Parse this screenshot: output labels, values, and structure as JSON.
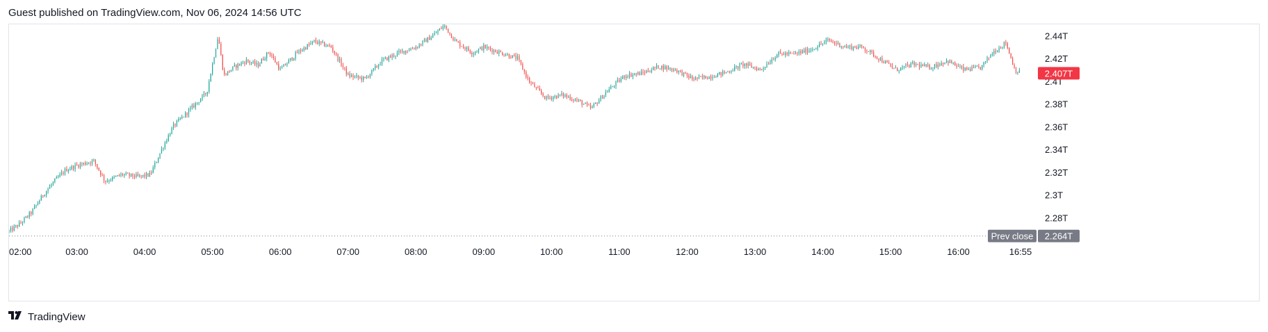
{
  "header": {
    "text": "Guest published on TradingView.com, Nov 06, 2024 14:56 UTC"
  },
  "footer": {
    "brand": "TradingView",
    "logo_icon": "tradingview-logo-icon"
  },
  "colors": {
    "up": "#26a69a",
    "down": "#ef5350",
    "last_price_bg": "#f23645",
    "prev_close_bg": "#787b86",
    "axis_text": "#131722",
    "border": "#e0e3eb",
    "prev_close_line": "#787b86"
  },
  "chart_data": {
    "type": "candlestick",
    "x_ticks": [
      "02:00",
      "03:00",
      "04:00",
      "05:00",
      "06:00",
      "07:00",
      "08:00",
      "09:00",
      "10:00",
      "11:00",
      "12:00",
      "13:00",
      "14:00",
      "15:00",
      "16:00",
      "16:55"
    ],
    "y_ticks": [
      "2.44T",
      "2.42T",
      "2.4T",
      "2.38T",
      "2.36T",
      "2.34T",
      "2.32T",
      "2.3T",
      "2.28T"
    ],
    "y_tick_values": [
      2.44,
      2.42,
      2.4,
      2.38,
      2.36,
      2.34,
      2.32,
      2.3,
      2.28
    ],
    "ylim": [
      2.262,
      2.45
    ],
    "y_unit": "T",
    "last_price": {
      "value": 2.407,
      "label": "2.407T"
    },
    "prev_close": {
      "value": 2.264,
      "label": "2.264T",
      "text": "Prev close"
    },
    "grid": false,
    "series_path": [
      [
        "02:00",
        2.268
      ],
      [
        "02:10",
        2.275
      ],
      [
        "02:20",
        2.285
      ],
      [
        "02:30",
        2.3
      ],
      [
        "02:40",
        2.312
      ],
      [
        "02:50",
        2.322
      ],
      [
        "03:00",
        2.326
      ],
      [
        "03:15",
        2.33
      ],
      [
        "03:25",
        2.312
      ],
      [
        "03:40",
        2.318
      ],
      [
        "03:55",
        2.316
      ],
      [
        "04:05",
        2.318
      ],
      [
        "04:15",
        2.34
      ],
      [
        "04:25",
        2.36
      ],
      [
        "04:35",
        2.37
      ],
      [
        "04:45",
        2.38
      ],
      [
        "04:55",
        2.39
      ],
      [
        "05:05",
        2.44
      ],
      [
        "05:10",
        2.405
      ],
      [
        "05:20",
        2.413
      ],
      [
        "05:30",
        2.418
      ],
      [
        "05:40",
        2.414
      ],
      [
        "05:50",
        2.426
      ],
      [
        "06:00",
        2.41
      ],
      [
        "06:15",
        2.425
      ],
      [
        "06:30",
        2.435
      ],
      [
        "06:45",
        2.43
      ],
      [
        "07:00",
        2.405
      ],
      [
        "07:15",
        2.402
      ],
      [
        "07:30",
        2.418
      ],
      [
        "07:45",
        2.425
      ],
      [
        "08:00",
        2.43
      ],
      [
        "08:15",
        2.44
      ],
      [
        "08:25",
        2.449
      ],
      [
        "08:35",
        2.435
      ],
      [
        "08:50",
        2.425
      ],
      [
        "09:00",
        2.43
      ],
      [
        "09:15",
        2.425
      ],
      [
        "09:30",
        2.42
      ],
      [
        "09:40",
        2.4
      ],
      [
        "09:55",
        2.385
      ],
      [
        "10:10",
        2.388
      ],
      [
        "10:25",
        2.382
      ],
      [
        "10:35",
        2.376
      ],
      [
        "10:50",
        2.392
      ],
      [
        "11:05",
        2.405
      ],
      [
        "11:20",
        2.407
      ],
      [
        "11:35",
        2.413
      ],
      [
        "11:50",
        2.41
      ],
      [
        "12:05",
        2.402
      ],
      [
        "12:20",
        2.404
      ],
      [
        "12:35",
        2.408
      ],
      [
        "12:50",
        2.415
      ],
      [
        "13:05",
        2.41
      ],
      [
        "13:20",
        2.424
      ],
      [
        "13:35",
        2.424
      ],
      [
        "13:50",
        2.428
      ],
      [
        "14:05",
        2.436
      ],
      [
        "14:20",
        2.43
      ],
      [
        "14:35",
        2.43
      ],
      [
        "14:50",
        2.42
      ],
      [
        "15:05",
        2.41
      ],
      [
        "15:20",
        2.415
      ],
      [
        "15:35",
        2.412
      ],
      [
        "15:50",
        2.418
      ],
      [
        "16:05",
        2.41
      ],
      [
        "16:20",
        2.412
      ],
      [
        "16:30",
        2.425
      ],
      [
        "16:42",
        2.434
      ],
      [
        "16:50",
        2.41
      ],
      [
        "16:55",
        2.407
      ]
    ]
  }
}
